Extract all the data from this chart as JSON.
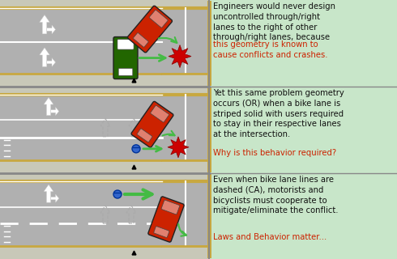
{
  "bg_color": "#c8e6c9",
  "road_color": "#b0b0b0",
  "sidewalk_color": "#c8c8b8",
  "curb_color": "#c8a840",
  "divider_color": "#888888",
  "white": "#ffffff",
  "text_panel1_black": "Engineers would never design\nuncontrolled through/right\nlanes to the right of other\nthrough/right lanes, because",
  "text_panel1_red": "this geometry is known to\ncause conflicts and crashes.",
  "text_panel2_black": "Yet this same problem geometry\noccurs (OR) when a bike lane is\nstriped solid with users required\nto stay in their respective lanes\nat the intersection.",
  "text_panel2_red": "Why is this behavior required?",
  "text_panel3_black": "Even when bike lane lines are\ndashed (CA), motorists and\nbicyclists must cooperate to\nmitigate/eliminate the conflict.",
  "text_panel3_red": "Laws and Behavior matter...",
  "car_red": "#cc2200",
  "car_red_light": "#e08070",
  "car_green": "#226600",
  "car_green_light": "#ffffff",
  "arrow_green": "#44bb44",
  "crash_red": "#cc0000",
  "text_black": "#111111",
  "text_red": "#cc2200",
  "font_size": 7.2,
  "bike_blue": "#3366cc"
}
